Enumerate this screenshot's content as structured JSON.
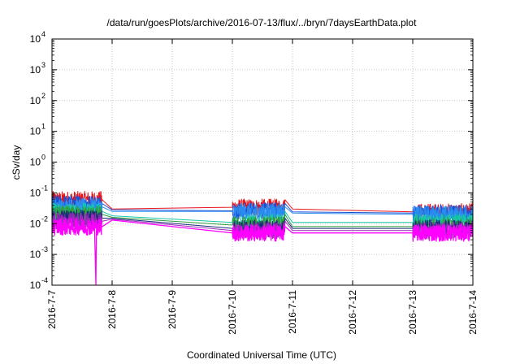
{
  "chart_data": {
    "type": "line",
    "title": "/data/run/goesPlots/archive/2016-07-13/flux/../bryn/7daysEarthData.plot",
    "xlabel": "Coordinated Universal Time (UTC)",
    "ylabel": "cSv/day",
    "x_ticks": [
      "2016-7-7",
      "2016-7-8",
      "2016-7-9",
      "2016-7-10",
      "2016-7-11",
      "2016-7-12",
      "2016-7-13",
      "2016-7-14"
    ],
    "xlim": [
      "2016-07-07",
      "2016-07-14"
    ],
    "y_scale": "log",
    "ylim": [
      0.0001,
      10000
    ],
    "y_ticks": [
      {
        "base": "10",
        "exp": "-4",
        "value": 0.0001
      },
      {
        "base": "10",
        "exp": "-3",
        "value": 0.001
      },
      {
        "base": "10",
        "exp": "-2",
        "value": 0.01
      },
      {
        "base": "10",
        "exp": "-1",
        "value": 0.1
      },
      {
        "base": "10",
        "exp": "0",
        "value": 1
      },
      {
        "base": "10",
        "exp": "1",
        "value": 10
      },
      {
        "base": "10",
        "exp": "2",
        "value": 100
      },
      {
        "base": "10",
        "exp": "3",
        "value": 1000
      },
      {
        "base": "10",
        "exp": "4",
        "value": 10000
      }
    ],
    "grid": true,
    "data_segments": [
      {
        "start": "2016-07-07T00:00",
        "end": "2016-07-07T20:00"
      },
      {
        "start": "2016-07-10T00:00",
        "end": "2016-07-10T21:00"
      },
      {
        "start": "2016-07-13T00:00",
        "end": "2016-07-14T00:00"
      }
    ],
    "series": [
      {
        "color": "#e8151b",
        "values": [
          {
            "x": "2016-07-07T00:00",
            "y": 0.06
          },
          {
            "x": "2016-07-07T20:00",
            "y": 0.06
          },
          {
            "x": "2016-07-08T00:00",
            "y": 0.03
          },
          {
            "x": "2016-07-10T00:00",
            "y": 0.034
          },
          {
            "x": "2016-07-10T21:00",
            "y": 0.06
          },
          {
            "x": "2016-07-11T00:00",
            "y": 0.03
          },
          {
            "x": "2016-07-13T00:00",
            "y": 0.024
          },
          {
            "x": "2016-07-14T00:00",
            "y": 0.06
          }
        ]
      },
      {
        "color": "#1a4fd6",
        "values": [
          {
            "x": "2016-07-07T00:00",
            "y": 0.045
          },
          {
            "x": "2016-07-07T20:00",
            "y": 0.045
          },
          {
            "x": "2016-07-08T00:00",
            "y": 0.028
          },
          {
            "x": "2016-07-10T00:00",
            "y": 0.026
          },
          {
            "x": "2016-07-10T21:00",
            "y": 0.045
          },
          {
            "x": "2016-07-11T00:00",
            "y": 0.024
          },
          {
            "x": "2016-07-13T00:00",
            "y": 0.022
          },
          {
            "x": "2016-07-14T00:00",
            "y": 0.045
          }
        ]
      },
      {
        "color": "#2b8cf0",
        "values": [
          {
            "x": "2016-07-07T00:00",
            "y": 0.035
          },
          {
            "x": "2016-07-07T20:00",
            "y": 0.035
          },
          {
            "x": "2016-07-08T00:00",
            "y": 0.025
          },
          {
            "x": "2016-07-10T00:00",
            "y": 0.025
          },
          {
            "x": "2016-07-10T21:00",
            "y": 0.035
          },
          {
            "x": "2016-07-11T00:00",
            "y": 0.022
          },
          {
            "x": "2016-07-13T00:00",
            "y": 0.02
          },
          {
            "x": "2016-07-14T00:00",
            "y": 0.035
          }
        ]
      },
      {
        "color": "#16c7a6",
        "values": [
          {
            "x": "2016-07-07T00:00",
            "y": 0.025
          },
          {
            "x": "2016-07-07T20:00",
            "y": 0.025
          },
          {
            "x": "2016-07-08T00:00",
            "y": 0.018
          },
          {
            "x": "2016-07-10T00:00",
            "y": 0.011
          },
          {
            "x": "2016-07-10T21:00",
            "y": 0.025
          },
          {
            "x": "2016-07-11T00:00",
            "y": 0.011
          },
          {
            "x": "2016-07-13T00:00",
            "y": 0.011
          },
          {
            "x": "2016-07-14T00:00",
            "y": 0.025
          }
        ]
      },
      {
        "color": "#2f9e3c",
        "values": [
          {
            "x": "2016-07-07T00:00",
            "y": 0.02
          },
          {
            "x": "2016-07-07T20:00",
            "y": 0.02
          },
          {
            "x": "2016-07-08T00:00",
            "y": 0.016
          },
          {
            "x": "2016-07-10T00:00",
            "y": 0.009
          },
          {
            "x": "2016-07-10T21:00",
            "y": 0.02
          },
          {
            "x": "2016-07-11T00:00",
            "y": 0.008
          },
          {
            "x": "2016-07-13T00:00",
            "y": 0.008
          },
          {
            "x": "2016-07-14T00:00",
            "y": 0.02
          }
        ]
      },
      {
        "color": "#1c2a7a",
        "values": [
          {
            "x": "2016-07-07T00:00",
            "y": 0.015
          },
          {
            "x": "2016-07-07T20:00",
            "y": 0.015
          },
          {
            "x": "2016-07-08T00:00",
            "y": 0.015
          },
          {
            "x": "2016-07-10T00:00",
            "y": 0.007
          },
          {
            "x": "2016-07-10T21:00",
            "y": 0.015
          },
          {
            "x": "2016-07-11T00:00",
            "y": 0.007
          },
          {
            "x": "2016-07-13T00:00",
            "y": 0.007
          },
          {
            "x": "2016-07-14T00:00",
            "y": 0.015
          }
        ]
      },
      {
        "color": "#9b2bb8",
        "values": [
          {
            "x": "2016-07-07T00:00",
            "y": 0.012
          },
          {
            "x": "2016-07-07T20:00",
            "y": 0.012
          },
          {
            "x": "2016-07-08T00:00",
            "y": 0.014
          },
          {
            "x": "2016-07-10T00:00",
            "y": 0.006
          },
          {
            "x": "2016-07-10T21:00",
            "y": 0.012
          },
          {
            "x": "2016-07-11T00:00",
            "y": 0.006
          },
          {
            "x": "2016-07-13T00:00",
            "y": 0.006
          },
          {
            "x": "2016-07-14T00:00",
            "y": 0.012
          }
        ]
      },
      {
        "color": "#ff00ff",
        "values": [
          {
            "x": "2016-07-07T00:00",
            "y": 0.008
          },
          {
            "x": "2016-07-07T17:00",
            "y": 0.007
          },
          {
            "x": "2016-07-07T17:30",
            "y": 0.0001
          },
          {
            "x": "2016-07-07T17:45",
            "y": 0.007
          },
          {
            "x": "2016-07-07T20:00",
            "y": 0.008
          },
          {
            "x": "2016-07-08T00:00",
            "y": 0.013
          },
          {
            "x": "2016-07-10T00:00",
            "y": 0.005
          },
          {
            "x": "2016-07-10T21:00",
            "y": 0.008
          },
          {
            "x": "2016-07-11T00:00",
            "y": 0.005
          },
          {
            "x": "2016-07-13T00:00",
            "y": 0.005
          },
          {
            "x": "2016-07-14T00:00",
            "y": 0.008
          }
        ]
      }
    ]
  }
}
